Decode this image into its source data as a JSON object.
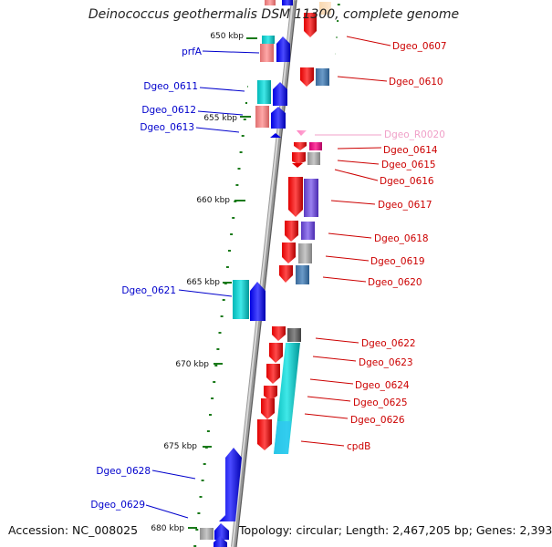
{
  "title": "Deinococcus geothermalis DSM 11300, complete genome",
  "footer": {
    "accession": "Accession: NC_008025",
    "topology": "Topology: circular; Length: 2,467,205 bp; Genes: 2,393"
  },
  "colors": {
    "forward_label": "#0000cc",
    "reverse_label": "#cc0000",
    "rna_label": "#f0a0c8",
    "backbone": "#808080",
    "tick": "#1a7a1a"
  },
  "scale": [
    "650 kbp",
    "655 kbp",
    "660 kbp",
    "665 kbp",
    "670 kbp",
    "675 kbp",
    "680 kbp"
  ],
  "forward_genes": [
    "prfA",
    "Dgeo_0611",
    "Dgeo_0612",
    "Dgeo_0613",
    "Dgeo_0621",
    "Dgeo_0628",
    "Dgeo_0629"
  ],
  "reverse_genes": [
    "Dgeo_0607",
    "Dgeo_0610",
    "Dgeo_0614",
    "Dgeo_0615",
    "Dgeo_0616",
    "Dgeo_0617",
    "Dgeo_0618",
    "Dgeo_0619",
    "Dgeo_0620",
    "Dgeo_0622",
    "Dgeo_0623",
    "Dgeo_0624",
    "Dgeo_0625",
    "Dgeo_0626",
    "cpdB"
  ],
  "rna_genes": [
    "Dgeo_R0020"
  ]
}
